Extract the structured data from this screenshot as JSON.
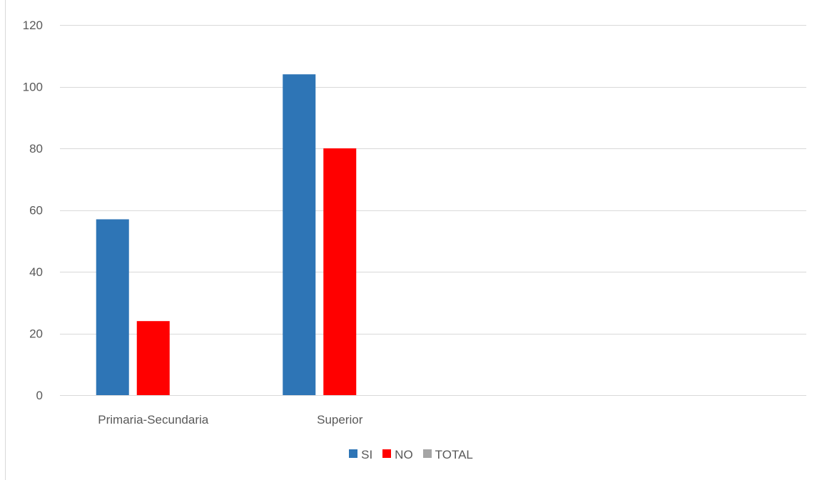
{
  "chart_data": {
    "type": "bar",
    "categories": [
      "Primaria-Secundaria",
      "Superior",
      "",
      ""
    ],
    "series": [
      {
        "name": "SI",
        "color": "#2e75b6",
        "values": [
          57,
          104,
          null,
          null
        ]
      },
      {
        "name": "NO",
        "color": "#ff0000",
        "values": [
          24,
          80,
          null,
          null
        ]
      },
      {
        "name": "TOTAL",
        "color": "#a5a5a5",
        "values": [
          null,
          null,
          null,
          null
        ]
      }
    ],
    "ylim": [
      0,
      120
    ],
    "yticks": [
      0,
      20,
      40,
      60,
      80,
      100,
      120
    ],
    "grid": true,
    "legend": "bottom",
    "title": "",
    "xlabel": "",
    "ylabel": ""
  }
}
